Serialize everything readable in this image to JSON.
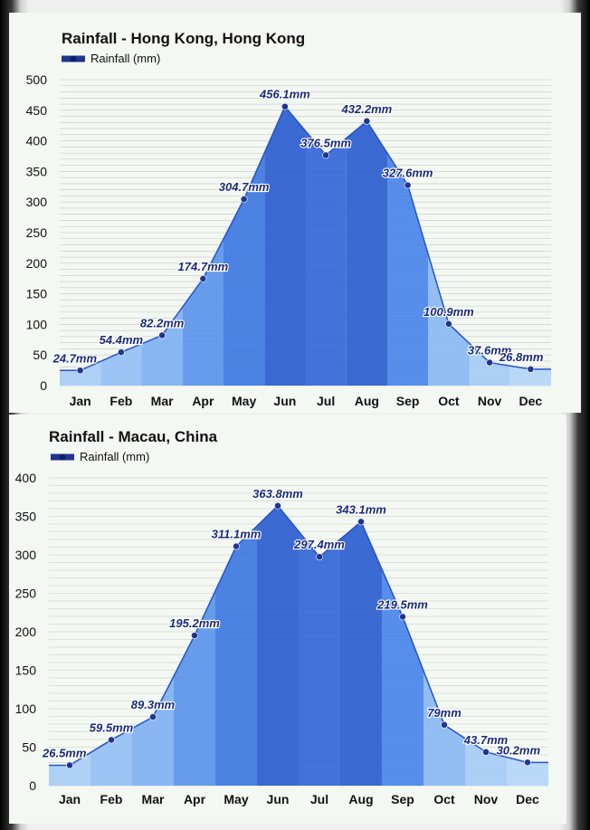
{
  "charts": [
    {
      "id": "hk",
      "title": "Rainfall - Hong Kong, Hong Kong",
      "legend": "Rainfall (mm)",
      "ylim": [
        0,
        500
      ],
      "ytick_step": 50,
      "unit": "mm",
      "categories": [
        "Jan",
        "Feb",
        "Mar",
        "Apr",
        "May",
        "Jun",
        "Jul",
        "Aug",
        "Sep",
        "Oct",
        "Nov",
        "Dec"
      ],
      "values": [
        24.7,
        54.4,
        82.2,
        174.7,
        304.7,
        456.1,
        376.5,
        432.2,
        327.6,
        100.9,
        37.6,
        26.8
      ],
      "labels": [
        "24.7mm",
        "54.4mm",
        "82.2mm",
        "174.7mm",
        "304.7mm",
        "456.1mm",
        "376.5mm",
        "432.2mm",
        "327.6mm",
        "100.9mm",
        "37.6mm",
        "26.8mm"
      ]
    },
    {
      "id": "mo",
      "title": "Rainfall - Macau, China",
      "legend": "Rainfall (mm)",
      "ylim": [
        0,
        400
      ],
      "ytick_step": 50,
      "unit": "mm",
      "categories": [
        "Jan",
        "Feb",
        "Mar",
        "Apr",
        "May",
        "Jun",
        "Jul",
        "Aug",
        "Sep",
        "Oct",
        "Nov",
        "Dec"
      ],
      "values": [
        26.5,
        59.5,
        89.3,
        195.2,
        311.1,
        363.8,
        297.4,
        343.1,
        219.5,
        79,
        43.7,
        30.2
      ],
      "labels": [
        "26.5mm",
        "59.5mm",
        "89.3mm",
        "195.2mm",
        "311.1mm",
        "363.8mm",
        "297.4mm",
        "343.1mm",
        "219.5mm",
        "79mm",
        "43.7mm",
        "30.2mm"
      ]
    }
  ],
  "chart_data": [
    {
      "type": "area",
      "title": "Rainfall - Hong Kong, Hong Kong",
      "series": [
        {
          "name": "Rainfall (mm)",
          "values": [
            24.7,
            54.4,
            82.2,
            174.7,
            304.7,
            456.1,
            376.5,
            432.2,
            327.6,
            100.9,
            37.6,
            26.8
          ]
        }
      ],
      "categories": [
        "Jan",
        "Feb",
        "Mar",
        "Apr",
        "May",
        "Jun",
        "Jul",
        "Aug",
        "Sep",
        "Oct",
        "Nov",
        "Dec"
      ],
      "ylim": [
        0,
        500
      ],
      "xlabel": "",
      "ylabel": ""
    },
    {
      "type": "area",
      "title": "Rainfall - Macau, China",
      "series": [
        {
          "name": "Rainfall (mm)",
          "values": [
            26.5,
            59.5,
            89.3,
            195.2,
            311.1,
            363.8,
            297.4,
            343.1,
            219.5,
            79,
            43.7,
            30.2
          ]
        }
      ],
      "categories": [
        "Jan",
        "Feb",
        "Mar",
        "Apr",
        "May",
        "Jun",
        "Jul",
        "Aug",
        "Sep",
        "Oct",
        "Nov",
        "Dec"
      ],
      "ylim": [
        0,
        400
      ],
      "xlabel": "",
      "ylabel": ""
    }
  ],
  "colors": {
    "grid": "#c4c8c4",
    "marker": "#1f3590",
    "line": "#2552c8",
    "label": "#1a2a78",
    "month_fills": [
      "#a9cdf6",
      "#95bff4",
      "#80b1f2",
      "#5a94ea",
      "#3e78e2",
      "#2c5dd0",
      "#3366d8",
      "#2c5dd0",
      "#4a84ea",
      "#8ab9f4",
      "#a6cbf6",
      "#b5d6f8"
    ]
  }
}
